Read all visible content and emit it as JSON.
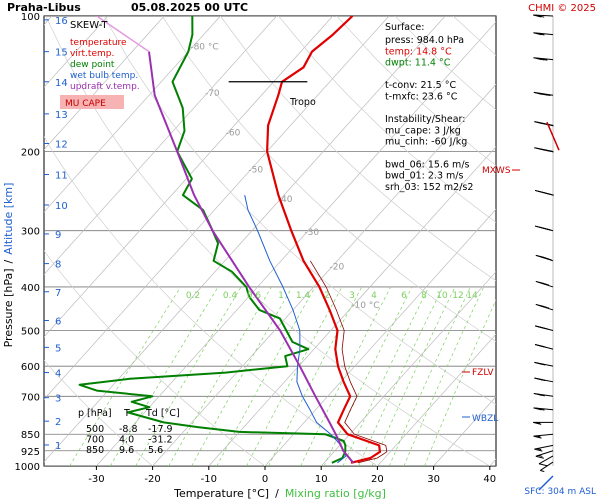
{
  "header": {
    "station": "Praha-Libus",
    "datetime": "05.08.2025 00 UTC",
    "credit": "CHMI © 2025"
  },
  "legend": {
    "title": "SKEW-T",
    "items": [
      {
        "label": "temperature",
        "color": "#e00000"
      },
      {
        "label": "virt.temp.",
        "color": "#e00000"
      },
      {
        "label": "dew point",
        "color": "#008000"
      },
      {
        "label": "wet bulb temp.",
        "color": "#1f5fd0"
      },
      {
        "label": "updraft v.temp.",
        "color": "#9b30b0"
      }
    ],
    "mucape_badge": "MU CAPE"
  },
  "surface": {
    "title": "Surface:",
    "lines": [
      {
        "text": "press: 984.0 hPa",
        "color": "#000000"
      },
      {
        "text": "temp: 14.8 °C",
        "color": "#e00000"
      },
      {
        "text": "dwpt: 11.4 °C",
        "color": "#008000"
      },
      {
        "text": "",
        "color": "#000000"
      },
      {
        "text": "t-conv: 21.5 °C",
        "color": "#000000"
      },
      {
        "text": "t-mxfc: 23.6 °C",
        "color": "#000000"
      },
      {
        "text": "",
        "color": "#000000"
      },
      {
        "text": "Instability/Shear:",
        "color": "#000000"
      },
      {
        "text": "mu_cape: 3 J/kg",
        "color": "#000000"
      },
      {
        "text": "mu_cinh: -60 J/kg",
        "color": "#000000"
      },
      {
        "text": "",
        "color": "#000000"
      },
      {
        "text": "bwd_06: 15.6 m/s",
        "color": "#000000"
      },
      {
        "text": "bwd_01: 2.3 m/s",
        "color": "#000000"
      },
      {
        "text": "srh_03: 152 m2/s2",
        "color": "#000000"
      }
    ]
  },
  "levels_table": {
    "headers": [
      "p [hPa]",
      "T",
      "Td [°C]"
    ],
    "rows": [
      [
        "500",
        "-8.8",
        "-17.9"
      ],
      [
        "700",
        "4.0",
        "-31.2"
      ],
      [
        "850",
        "9.6",
        "5.6"
      ]
    ]
  },
  "markers": {
    "tropo": "Tropo",
    "mxws": "MXWS",
    "fzlv": "FZLV",
    "wbzl": "WBZL",
    "sfc": "SFC: 304 m ASL"
  },
  "chart_data": {
    "type": "line",
    "title": "",
    "xlabel": "Temperature [°C]",
    "xlabel_sep": "/",
    "xlabel2": "Mixing ratio [g/kg]",
    "ylabel": "Pressure [hPa]",
    "ylabel_sep": "/",
    "ylabel2": "Altitude [km]",
    "y_scale": "log",
    "xlim": [
      -35,
      45
    ],
    "ylim": [
      1000,
      100
    ],
    "x_ticks": [
      "-30",
      "-20",
      "-10",
      "0",
      "10",
      "20",
      "30",
      "40"
    ],
    "pressure_ticks": [
      "100",
      "200",
      "300",
      "400",
      "500",
      "600",
      "700",
      "850",
      "925",
      "1000"
    ],
    "altitude_ticks": [
      "1",
      "2",
      "3",
      "4",
      "5",
      "6",
      "7",
      "8",
      "9",
      "10",
      "11",
      "12",
      "13",
      "14",
      "15",
      "16"
    ],
    "mixing_ratio_labels": [
      "0.2",
      "0.4",
      "0.6",
      "1",
      "1.4",
      "2",
      "3",
      "4",
      "6",
      "8",
      "10",
      "12",
      "14",
      "17",
      "20",
      "25"
    ],
    "isotherm_labels": [
      "-80 °C",
      "-70",
      "-60",
      "-50",
      "-40",
      "-30",
      "-20",
      "-10 °C"
    ],
    "series": [
      {
        "name": "temperature",
        "color": "#e00000",
        "points": [
          [
            984,
            14.8
          ],
          [
            960,
            17.5
          ],
          [
            930,
            18.2
          ],
          [
            900,
            17.0
          ],
          [
            850,
            9.6
          ],
          [
            800,
            6.0
          ],
          [
            750,
            5.0
          ],
          [
            700,
            4.0
          ],
          [
            650,
            0.5
          ],
          [
            600,
            -3.0
          ],
          [
            550,
            -6.2
          ],
          [
            500,
            -8.8
          ],
          [
            450,
            -13.5
          ],
          [
            400,
            -19.0
          ],
          [
            350,
            -26.0
          ],
          [
            300,
            -33.0
          ],
          [
            250,
            -41.0
          ],
          [
            200,
            -50.0
          ],
          [
            175,
            -54.0
          ],
          [
            150,
            -57.0
          ],
          [
            140,
            -58.5
          ],
          [
            130,
            -57.0
          ],
          [
            120,
            -58.0
          ],
          [
            110,
            -57.0
          ],
          [
            100,
            -56.5
          ]
        ]
      },
      {
        "name": "dew point",
        "color": "#008000",
        "points": [
          [
            984,
            11.4
          ],
          [
            960,
            12.5
          ],
          [
            930,
            12.0
          ],
          [
            900,
            11.0
          ],
          [
            880,
            10.0
          ],
          [
            850,
            5.6
          ],
          [
            840,
            -10.0
          ],
          [
            820,
            -18.0
          ],
          [
            800,
            -25.0
          ],
          [
            780,
            -29.0
          ],
          [
            760,
            -33.0
          ],
          [
            740,
            -30.0
          ],
          [
            720,
            -34.0
          ],
          [
            700,
            -31.2
          ],
          [
            680,
            -42.0
          ],
          [
            660,
            -46.0
          ],
          [
            640,
            -38.0
          ],
          [
            620,
            -22.0
          ],
          [
            600,
            -12.0
          ],
          [
            570,
            -14.0
          ],
          [
            550,
            -11.0
          ],
          [
            530,
            -15.0
          ],
          [
            500,
            -17.9
          ],
          [
            470,
            -21.0
          ],
          [
            450,
            -26.0
          ],
          [
            420,
            -30.0
          ],
          [
            400,
            -32.0
          ],
          [
            370,
            -37.0
          ],
          [
            350,
            -42.0
          ],
          [
            320,
            -44.0
          ],
          [
            300,
            -47.0
          ],
          [
            270,
            -52.0
          ],
          [
            250,
            -58.0
          ],
          [
            230,
            -59.0
          ],
          [
            200,
            -66.0
          ],
          [
            180,
            -68.0
          ],
          [
            160,
            -72.0
          ],
          [
            140,
            -78.0
          ],
          [
            120,
            -80.0
          ],
          [
            110,
            -82.0
          ],
          [
            100,
            -85.0
          ]
        ]
      },
      {
        "name": "wet bulb temp.",
        "color": "#1f5fd0",
        "points": [
          [
            984,
            12.4
          ],
          [
            950,
            12.8
          ],
          [
            900,
            10.2
          ],
          [
            850,
            6.6
          ],
          [
            800,
            2.2
          ],
          [
            750,
            -1.0
          ],
          [
            700,
            -4.5
          ],
          [
            650,
            -7.8
          ],
          [
            600,
            -10.2
          ],
          [
            550,
            -12.5
          ],
          [
            500,
            -15.5
          ],
          [
            450,
            -20.0
          ],
          [
            400,
            -25.5
          ],
          [
            350,
            -32.0
          ],
          [
            300,
            -39.0
          ],
          [
            270,
            -44.0
          ],
          [
            250,
            -47.0
          ]
        ]
      },
      {
        "name": "updraft v.temp.",
        "color": "#9b30b0",
        "points": [
          [
            984,
            15.2
          ],
          [
            925,
            11.5
          ],
          [
            850,
            7.5
          ],
          [
            800,
            4.5
          ],
          [
            700,
            -2.2
          ],
          [
            600,
            -9.8
          ],
          [
            500,
            -19.0
          ],
          [
            400,
            -31.5
          ],
          [
            300,
            -47.0
          ],
          [
            250,
            -56.0
          ],
          [
            200,
            -66.0
          ],
          [
            150,
            -79.0
          ],
          [
            120,
            -87.0
          ]
        ]
      }
    ],
    "wind_profile": [
      {
        "p": 980,
        "dir": 220,
        "speed_kt": 5
      },
      {
        "p": 950,
        "dir": 225,
        "speed_kt": 10
      },
      {
        "p": 925,
        "dir": 240,
        "speed_kt": 15
      },
      {
        "p": 900,
        "dir": 250,
        "speed_kt": 15
      },
      {
        "p": 850,
        "dir": 260,
        "speed_kt": 15
      },
      {
        "p": 800,
        "dir": 270,
        "speed_kt": 15
      },
      {
        "p": 750,
        "dir": 280,
        "speed_kt": 20
      },
      {
        "p": 700,
        "dir": 285,
        "speed_kt": 20
      },
      {
        "p": 650,
        "dir": 290,
        "speed_kt": 25
      },
      {
        "p": 600,
        "dir": 290,
        "speed_kt": 25
      },
      {
        "p": 550,
        "dir": 295,
        "speed_kt": 25
      },
      {
        "p": 500,
        "dir": 295,
        "speed_kt": 30
      },
      {
        "p": 450,
        "dir": 300,
        "speed_kt": 30
      },
      {
        "p": 400,
        "dir": 300,
        "speed_kt": 35
      },
      {
        "p": 350,
        "dir": 300,
        "speed_kt": 40
      },
      {
        "p": 300,
        "dir": 295,
        "speed_kt": 45
      },
      {
        "p": 250,
        "dir": 295,
        "speed_kt": 50
      },
      {
        "p": 200,
        "dir": 290,
        "speed_kt": 55
      },
      {
        "p": 175,
        "dir": 290,
        "speed_kt": 50
      },
      {
        "p": 150,
        "dir": 285,
        "speed_kt": 40
      },
      {
        "p": 125,
        "dir": 280,
        "speed_kt": 30
      },
      {
        "p": 110,
        "dir": 280,
        "speed_kt": 25
      },
      {
        "p": 100,
        "dir": 275,
        "speed_kt": 20
      }
    ]
  }
}
